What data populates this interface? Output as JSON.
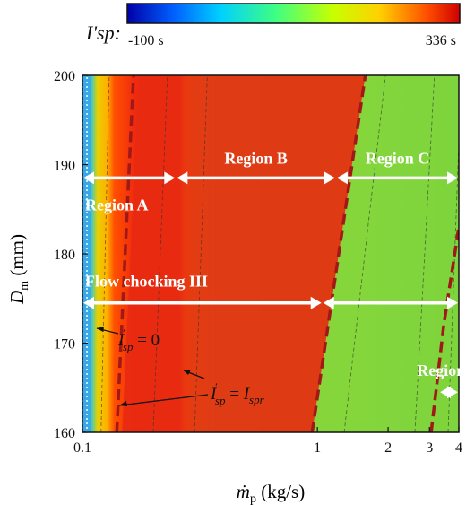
{
  "chart_data": {
    "type": "heatmap",
    "colorbar": {
      "symbol": "I'sp:",
      "min_label": "-100 s",
      "max_label": "336 s",
      "min": -100,
      "max": 336,
      "colormap": [
        "#0000a8",
        "#0060ff",
        "#00d0ff",
        "#40ff80",
        "#c8ff00",
        "#ffd000",
        "#ff5000",
        "#d00000"
      ]
    },
    "xlabel": "ṁp (kg/s)",
    "ylabel": "Dm (mm)",
    "x_scale": "log",
    "xlim": [
      0.1,
      4
    ],
    "ylim": [
      160,
      200
    ],
    "x_ticks": [
      {
        "value": 0.1,
        "label": "0.1"
      },
      {
        "value": 1,
        "label": "1"
      },
      {
        "value": 2,
        "label": "2"
      },
      {
        "value": 3,
        "label": "3"
      },
      {
        "value": 4,
        "label": "4"
      }
    ],
    "y_ticks": [
      {
        "value": 160,
        "label": "160"
      },
      {
        "value": 170,
        "label": "170"
      },
      {
        "value": 180,
        "label": "180"
      },
      {
        "value": 190,
        "label": "190"
      },
      {
        "value": 200,
        "label": "200"
      }
    ],
    "boundaries": [
      {
        "name": "I'sp = 0",
        "points": [
          [
            0.14,
            160
          ],
          [
            0.165,
            200
          ]
        ]
      },
      {
        "name": "I'sp = Ispr",
        "points": [
          [
            0.95,
            160
          ],
          [
            1.6,
            200
          ]
        ]
      },
      {
        "name": "region-d-boundary",
        "points": [
          [
            3.05,
            160
          ],
          [
            3.45,
            172
          ],
          [
            4.0,
            183
          ]
        ]
      }
    ],
    "regions": [
      {
        "label": "Region A",
        "x_range": [
          0.1,
          0.25
        ],
        "y": 188.5
      },
      {
        "label": "Region B",
        "x_range": [
          0.25,
          1.2
        ],
        "y": 188.5
      },
      {
        "label": "Region C",
        "x_range": [
          1.2,
          4.0
        ],
        "y": 188.5
      },
      {
        "label": "Flow chocking III",
        "x_range": [
          0.1,
          1.05
        ],
        "y": 174.5
      },
      {
        "label": "",
        "x_range": [
          1.05,
          4.0
        ],
        "y": 174.5
      },
      {
        "label": "Region D",
        "x_range": [
          3.3,
          4.0
        ],
        "y": 164.5
      }
    ],
    "annotations": [
      {
        "lhs": "I'sp",
        "rhs": "= 0"
      },
      {
        "lhs": "I'sp",
        "rhs": "= Ispr"
      }
    ]
  }
}
